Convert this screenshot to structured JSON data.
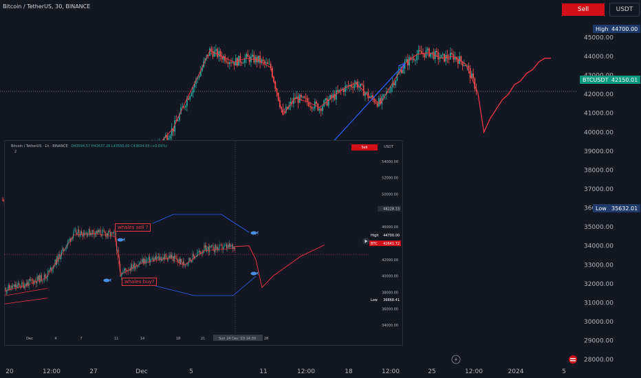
{
  "header": {
    "title": "Bitcoin / TetherUS, 30, BINANCE",
    "sell_label": "Sell",
    "currency_label": "USDT"
  },
  "price_tags": {
    "high_label": "High",
    "high_value": "44700.00",
    "current_label": "BTCUSDT",
    "current_value": "42150.01",
    "low_label": "Low",
    "low_value": "35632.01"
  },
  "colors": {
    "background": "#131722",
    "up_candle": "#26a69a",
    "down_candle": "#ef5350",
    "projection_line": "#f23645",
    "arrow": "#2962ff",
    "sell_button": "#d1101a",
    "tag_navy": "#1e3a6b",
    "tag_teal": "#089981"
  },
  "icons": [
    "lightning-icon",
    "flag-icon",
    "whale-icon"
  ],
  "chart_data": [
    {
      "type": "line",
      "title": "Bitcoin / TetherUS, 30, BINANCE",
      "y_axis_ticks": [
        45000,
        44000,
        43000,
        42000,
        41000,
        40000,
        39000,
        38000,
        37000,
        36000,
        35000,
        34000,
        33000,
        32000,
        31000,
        30000,
        29000,
        28000
      ],
      "ylim": [
        27500,
        46500
      ],
      "x_tick_labels": [
        "20",
        "12:00",
        "27",
        "Dec",
        "5",
        "11",
        "12:00",
        "18",
        "12:00",
        "25",
        "12:00",
        "2024",
        "5"
      ],
      "markers": {
        "high": 44700.0,
        "current": 42150.01,
        "low": 35632.01
      },
      "series": [
        {
          "values_x_index": [
            0,
            4,
            8,
            12,
            16,
            20,
            24,
            28,
            32,
            36,
            40,
            44,
            48,
            52,
            56,
            60,
            64,
            68,
            72,
            76,
            80,
            84,
            88,
            92,
            96,
            100,
            104,
            108,
            112,
            116,
            120,
            124,
            128,
            132,
            136,
            140,
            144,
            148,
            152,
            156
          ],
          "values": [
            36400,
            36800,
            37300,
            37000,
            37600,
            37200,
            37800,
            37500,
            38000,
            37900,
            38200,
            38800,
            39100,
            39500,
            40200,
            41600,
            42900,
            44300,
            44000,
            43700,
            43900,
            43800,
            43400,
            40900,
            41800,
            41600,
            41300,
            41800,
            42300,
            42600,
            41900,
            41500,
            42600,
            43600,
            44100,
            44200,
            43900,
            44000,
            43600,
            42100
          ]
        },
        {
          "name": "projection",
          "values_x_index": [
            156,
            158,
            160,
            162,
            164,
            166,
            168,
            170,
            172,
            174,
            176,
            178,
            180
          ],
          "values": [
            42100,
            40000,
            40700,
            41200,
            41700,
            42000,
            42500,
            42700,
            43100,
            43300,
            43700,
            43900,
            43900
          ]
        }
      ]
    },
    {
      "type": "line",
      "title": "Bitcoin / TetherUS · 1h · BINANCE",
      "ohlc_text": "O43594.57 H43637.28 L43550.00 C43634.03 (+0.09%)",
      "indicator_count": "2",
      "sell_label": "Sell",
      "currency_label": "USDT",
      "y_axis_ticks": [
        54000,
        52000,
        50000,
        46000,
        42000,
        40000,
        38000,
        36000,
        34000
      ],
      "ylim": [
        33000,
        55500
      ],
      "price_marker": "48228.33",
      "high_tag": {
        "label": "High",
        "value": "44700.00"
      },
      "current_tag": {
        "label": "BTC",
        "value": "42641.72"
      },
      "low_tag": {
        "label": "Low",
        "value": "36868.41"
      },
      "x_tick_labels": [
        "Dec",
        "4",
        "7",
        "11",
        "14",
        "18",
        "21",
        "Sun 24 Dec '23  14:30",
        "28"
      ],
      "annotations": [
        "whales sell ?",
        "whales buy?"
      ]
    }
  ]
}
